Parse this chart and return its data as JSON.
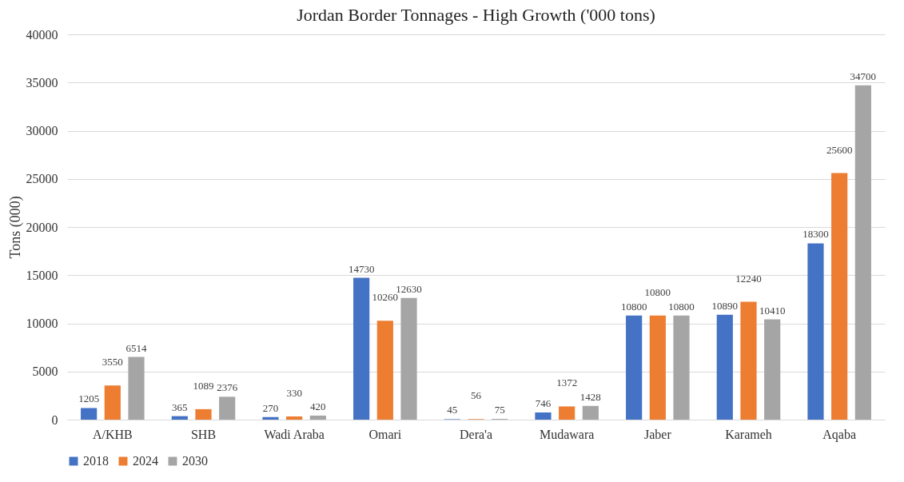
{
  "chart_data": {
    "type": "bar",
    "title": "Jordan Border Tonnages - High Growth ('000 tons)",
    "ylabel": "Tons (000)",
    "categories": [
      "A/KHB",
      "SHB",
      "Wadi Araba",
      "Omari",
      "Dera'a",
      "Mudawara",
      "Jaber",
      "Karameh",
      "Aqaba"
    ],
    "series": [
      {
        "name": "2018",
        "color": "#4472c4",
        "values": [
          1205,
          365,
          270,
          14730,
          45,
          746,
          10800,
          10890,
          18300
        ]
      },
      {
        "name": "2024",
        "color": "#ed7d31",
        "values": [
          3550,
          1089,
          330,
          10260,
          56,
          1372,
          10800,
          12240,
          25600
        ]
      },
      {
        "name": "2030",
        "color": "#a5a5a5",
        "values": [
          6514,
          2376,
          420,
          12630,
          75,
          1428,
          10800,
          10410,
          34700
        ]
      }
    ],
    "ylim": [
      0,
      40000
    ],
    "yticks": [
      0,
      5000,
      10000,
      15000,
      20000,
      25000,
      30000,
      35000,
      40000
    ],
    "grid": "y",
    "legend": "bottom",
    "data_labels": true
  }
}
